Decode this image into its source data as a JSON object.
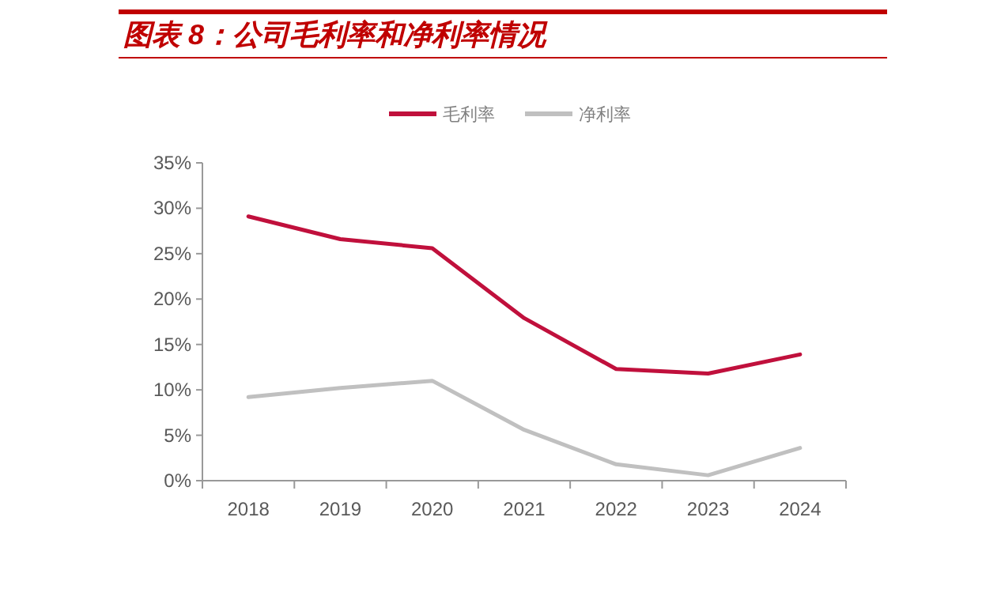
{
  "chart_data": {
    "type": "line",
    "title": "图表 8：公司毛利率和净利率情况",
    "categories": [
      "2018",
      "2019",
      "2020",
      "2021",
      "2022",
      "2023",
      "2024"
    ],
    "series": [
      {
        "name": "毛利率",
        "color": "#c0103c",
        "values": [
          29.1,
          26.6,
          25.6,
          17.9,
          12.3,
          11.8,
          13.9
        ]
      },
      {
        "name": "净利率",
        "color": "#c0c0c0",
        "values": [
          9.2,
          10.2,
          11.0,
          5.6,
          1.8,
          0.6,
          3.6
        ]
      }
    ],
    "ylim": [
      0,
      35
    ],
    "yticks": [
      {
        "value": 0,
        "label": "0%"
      },
      {
        "value": 5,
        "label": "5%"
      },
      {
        "value": 10,
        "label": "10%"
      },
      {
        "value": 15,
        "label": "15%"
      },
      {
        "value": 20,
        "label": "20%"
      },
      {
        "value": 25,
        "label": "25%"
      },
      {
        "value": 30,
        "label": "30%"
      },
      {
        "value": 35,
        "label": "35%"
      }
    ],
    "grid": false,
    "legend": "top",
    "marker": "none",
    "line_style": "solid"
  }
}
